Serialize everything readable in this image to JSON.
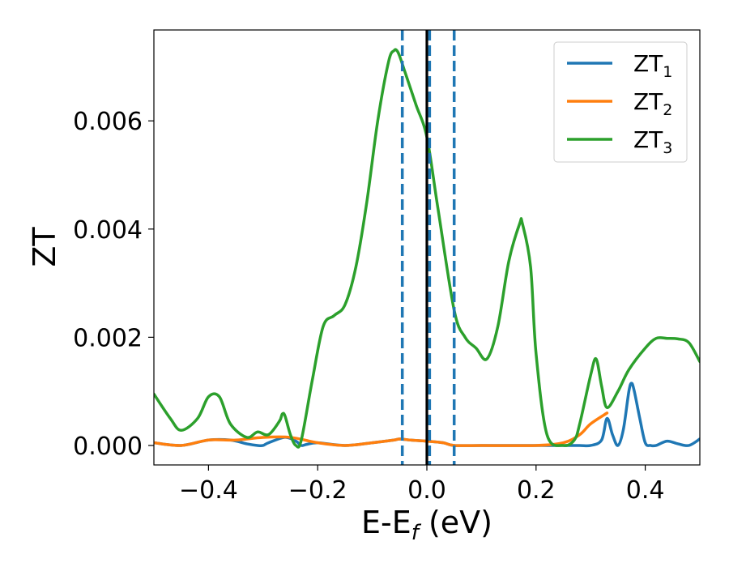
{
  "chart_data": {
    "type": "line",
    "title": "",
    "xlabel": "E-E_f (eV)",
    "xlabel_parts": {
      "main": "E-E",
      "sub": "f",
      "tail": " (eV)"
    },
    "ylabel": "ZT",
    "xlim": [
      -0.5,
      0.5
    ],
    "ylim": [
      -0.00036,
      0.00768
    ],
    "xticks": [
      -0.4,
      -0.2,
      0.0,
      0.2,
      0.4
    ],
    "xtick_labels": [
      "−0.4",
      "−0.2",
      "0.0",
      "0.2",
      "0.4"
    ],
    "yticks": [
      0.0,
      0.002,
      0.004,
      0.006
    ],
    "ytick_labels": [
      "0.000",
      "0.002",
      "0.004",
      "0.006"
    ],
    "grid": false,
    "legend_position": "top-right",
    "vertical_lines": [
      {
        "x": -0.045,
        "style": "dashed",
        "color": "#1f77b4"
      },
      {
        "x": 0.005,
        "style": "dashed",
        "color": "#1f77b4"
      },
      {
        "x": 0.05,
        "style": "dashed",
        "color": "#1f77b4"
      },
      {
        "x": 0.0,
        "style": "solid",
        "color": "#000000"
      }
    ],
    "series": [
      {
        "name": "ZT",
        "name_sub": "1",
        "color": "#1f77b4",
        "x": [
          -0.5,
          -0.45,
          -0.4,
          -0.36,
          -0.33,
          -0.31,
          -0.3,
          -0.29,
          -0.26,
          -0.24,
          -0.23,
          -0.22,
          -0.2,
          -0.15,
          -0.1,
          -0.06,
          -0.05,
          -0.03,
          0.0,
          0.03,
          0.05,
          0.1,
          0.2,
          0.25,
          0.28,
          0.3,
          0.32,
          0.33,
          0.34,
          0.35,
          0.36,
          0.37,
          0.375,
          0.38,
          0.39,
          0.4,
          0.41,
          0.42,
          0.44,
          0.46,
          0.48,
          0.5
        ],
        "y": [
          5e-05,
          0.0,
          0.0001,
          0.0001,
          3e-05,
          0.0,
          0.0,
          5e-05,
          0.00015,
          8e-05,
          0.0,
          2e-05,
          5e-05,
          0.0,
          5e-05,
          0.0001,
          0.00012,
          0.0001,
          8e-05,
          5e-05,
          0.0,
          0.0,
          0.0,
          0.0,
          0.0,
          0.0,
          0.0001,
          0.0005,
          0.0002,
          0.0,
          0.0003,
          0.001,
          0.00115,
          0.001,
          0.0005,
          5e-05,
          0.0,
          0.0,
          8e-05,
          3e-05,
          0.0,
          0.00012
        ]
      },
      {
        "name": "ZT",
        "name_sub": "2",
        "color": "#ff7f0e",
        "x": [
          -0.5,
          -0.45,
          -0.4,
          -0.35,
          -0.3,
          -0.25,
          -0.2,
          -0.15,
          -0.1,
          -0.06,
          -0.05,
          -0.03,
          0.0,
          0.03,
          0.05,
          0.1,
          0.2,
          0.25,
          0.28,
          0.3,
          0.33
        ],
        "y": [
          5e-05,
          0.0,
          0.0001,
          0.0001,
          0.00015,
          0.00015,
          5e-05,
          0.0,
          5e-05,
          0.0001,
          0.00012,
          0.0001,
          8e-05,
          5e-05,
          0.0,
          0.0,
          0.0,
          5e-05,
          0.0002,
          0.0004,
          0.0006
        ]
      },
      {
        "name": "ZT",
        "name_sub": "3",
        "color": "#2ca02c",
        "x": [
          -0.5,
          -0.47,
          -0.45,
          -0.42,
          -0.4,
          -0.38,
          -0.36,
          -0.33,
          -0.31,
          -0.29,
          -0.27,
          -0.265,
          -0.26,
          -0.25,
          -0.24,
          -0.23,
          -0.21,
          -0.19,
          -0.17,
          -0.15,
          -0.13,
          -0.11,
          -0.09,
          -0.07,
          -0.06,
          -0.055,
          -0.05,
          -0.04,
          -0.02,
          0.0,
          0.02,
          0.05,
          0.07,
          0.09,
          0.11,
          0.13,
          0.15,
          0.17,
          0.175,
          0.19,
          0.2,
          0.22,
          0.25,
          0.27,
          0.28,
          0.3,
          0.31,
          0.32,
          0.33,
          0.35,
          0.37,
          0.4,
          0.42,
          0.44,
          0.46,
          0.48,
          0.5
        ],
        "y": [
          0.00095,
          0.0005,
          0.00028,
          0.0005,
          0.0009,
          0.0009,
          0.0004,
          0.00015,
          0.00025,
          0.0002,
          0.00045,
          0.00058,
          0.00055,
          0.0002,
          0.0,
          0.0001,
          0.0012,
          0.0022,
          0.0024,
          0.0026,
          0.0033,
          0.0045,
          0.006,
          0.0071,
          0.0073,
          0.0073,
          0.0072,
          0.0069,
          0.0063,
          0.0057,
          0.0044,
          0.0025,
          0.002,
          0.0018,
          0.0016,
          0.0022,
          0.0034,
          0.0041,
          0.0041,
          0.0033,
          0.0017,
          0.0002,
          0.0,
          0.0001,
          0.0004,
          0.0013,
          0.0016,
          0.0011,
          0.0007,
          0.001,
          0.0014,
          0.0018,
          0.00198,
          0.00198,
          0.00197,
          0.0019,
          0.00155
        ]
      }
    ]
  }
}
